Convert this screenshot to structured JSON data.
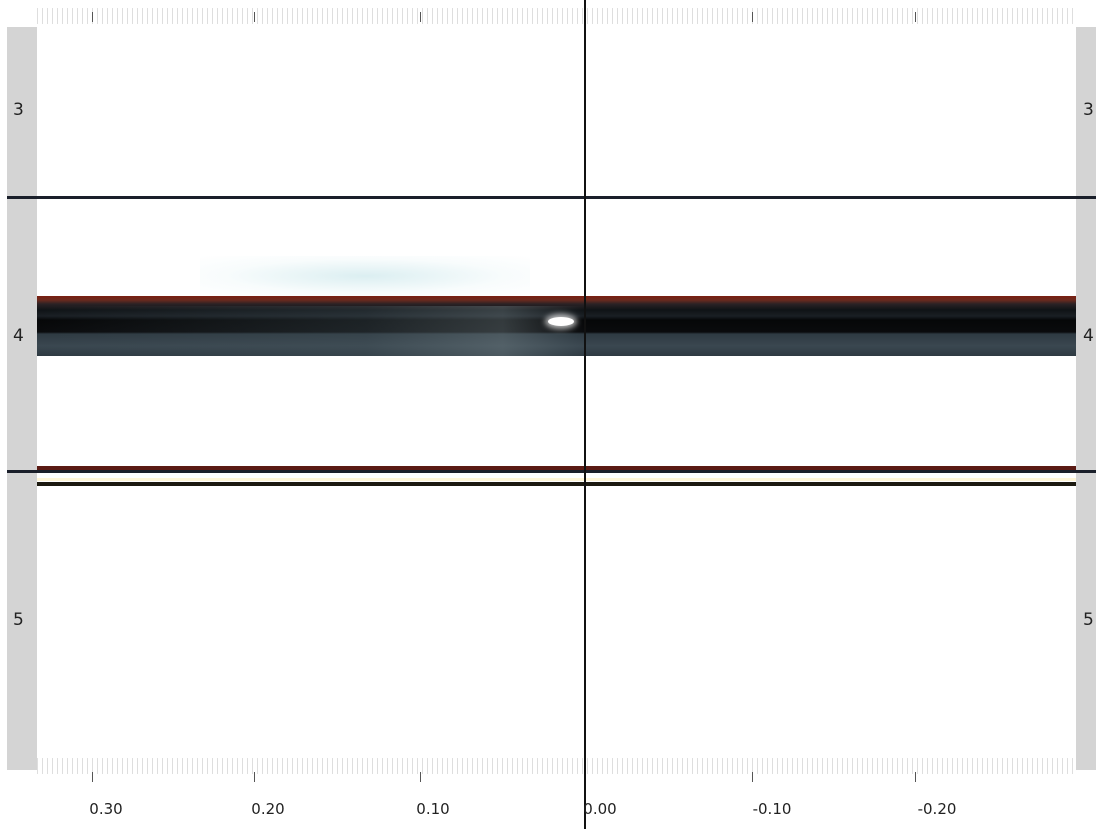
{
  "row_labels": {
    "left": [
      "3",
      "4",
      "5"
    ],
    "right": [
      "3",
      "4",
      "5"
    ]
  },
  "x_axis": {
    "labels": [
      "0.30",
      "0.20",
      "0.10",
      "0.00",
      "-0.10",
      "-0.20"
    ]
  },
  "colors": {
    "strip": "#d4d4d4",
    "band_top": "#7a1f12",
    "band_dark": "#0a0b0d",
    "band_bottom": "#3a4750",
    "divider": "#1a1f2a"
  }
}
